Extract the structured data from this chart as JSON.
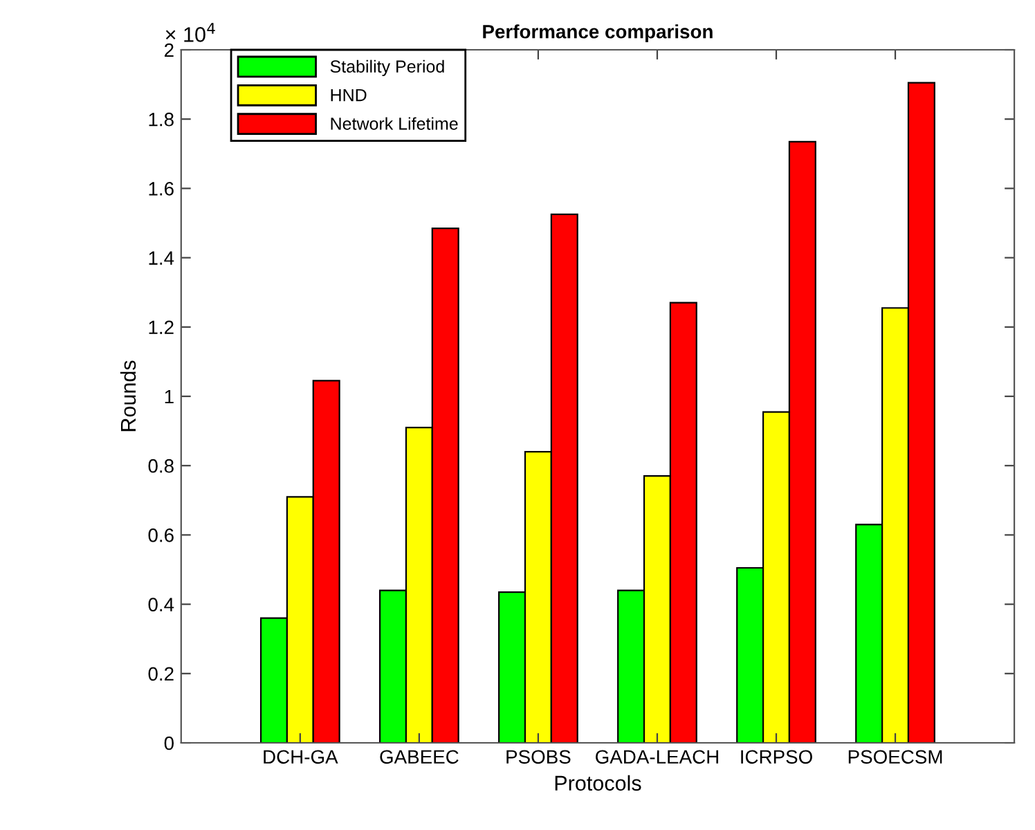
{
  "chart_data": {
    "type": "bar",
    "title": "Performance comparison",
    "xlabel": "Protocols",
    "ylabel": "Rounds",
    "annotations": [
      "× 10$^{4}$"
    ],
    "categories": [
      "DCH-GA",
      "GABEEC",
      "PSOBS",
      "GADA-LEACH",
      "ICRPSO",
      "PSOECSM"
    ],
    "series": [
      {
        "name": "Stability Period",
        "color": "#00ff00",
        "values": [
          0.36,
          0.44,
          0.435,
          0.44,
          0.505,
          0.63
        ]
      },
      {
        "name": "HND",
        "color": "#ffff00",
        "values": [
          0.71,
          0.91,
          0.84,
          0.77,
          0.955,
          1.255
        ]
      },
      {
        "name": "Network Lifetime",
        "color": "#ff0000",
        "values": [
          1.045,
          1.485,
          1.525,
          1.27,
          1.735,
          1.905
        ]
      }
    ],
    "ylim": [
      0,
      2
    ],
    "yticks": [
      0,
      0.2,
      0.4,
      0.6,
      0.8,
      1,
      1.2,
      1.4,
      1.6,
      1.8,
      2
    ],
    "legend": "top left",
    "grid": false
  }
}
